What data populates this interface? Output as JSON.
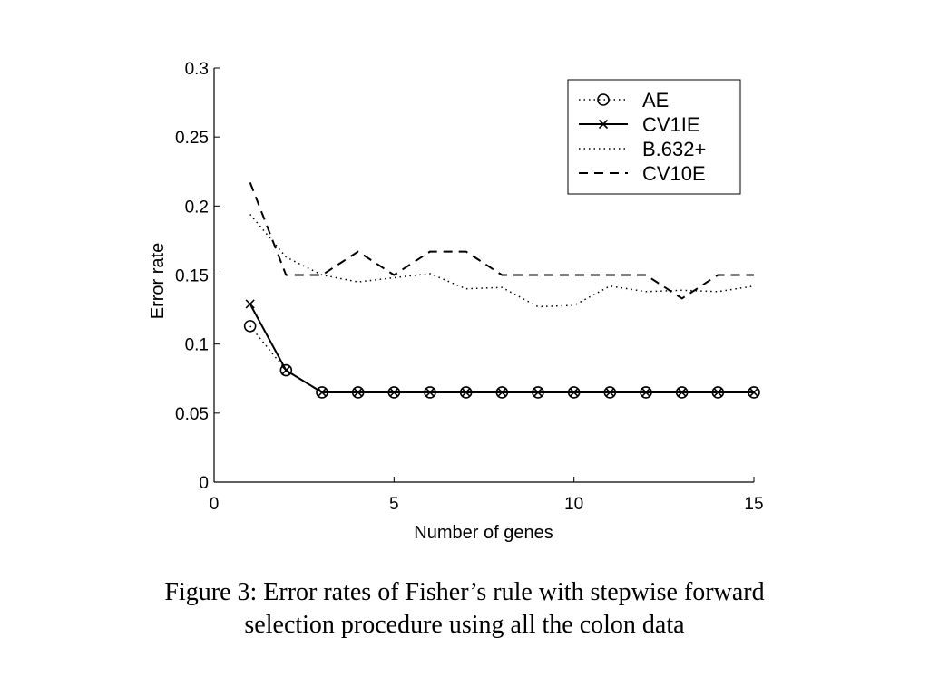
{
  "chart_data": {
    "type": "line",
    "xlabel": "Number of genes",
    "ylabel": "Error rate",
    "xlim": [
      0,
      15
    ],
    "ylim": [
      0,
      0.3
    ],
    "x_ticks": [
      "0",
      "5",
      "10",
      "15"
    ],
    "y_ticks": [
      "0",
      "0.05",
      "0.1",
      "0.15",
      "0.2",
      "0.25",
      "0.3"
    ],
    "grid": false,
    "legend_position": "top-right",
    "series": [
      {
        "name": "AE",
        "style": "dotted-circle",
        "x": [
          1,
          2,
          3,
          4,
          5,
          6,
          7,
          8,
          9,
          10,
          11,
          12,
          13,
          14,
          15
        ],
        "values": [
          0.113,
          0.081,
          0.065,
          0.065,
          0.065,
          0.065,
          0.065,
          0.065,
          0.065,
          0.065,
          0.065,
          0.065,
          0.065,
          0.065,
          0.065
        ]
      },
      {
        "name": "CV1IE",
        "style": "solid-x",
        "x": [
          1,
          2,
          3,
          4,
          5,
          6,
          7,
          8,
          9,
          10,
          11,
          12,
          13,
          14,
          15
        ],
        "values": [
          0.129,
          0.081,
          0.065,
          0.065,
          0.065,
          0.065,
          0.065,
          0.065,
          0.065,
          0.065,
          0.065,
          0.065,
          0.065,
          0.065,
          0.065
        ]
      },
      {
        "name": "B.632+",
        "style": "dotted",
        "x": [
          1,
          2,
          3,
          4,
          5,
          6,
          7,
          8,
          9,
          10,
          11,
          12,
          13,
          14,
          15
        ],
        "values": [
          0.194,
          0.163,
          0.15,
          0.145,
          0.148,
          0.151,
          0.14,
          0.141,
          0.127,
          0.128,
          0.142,
          0.138,
          0.139,
          0.138,
          0.142
        ]
      },
      {
        "name": "CV10E",
        "style": "dashed",
        "x": [
          1,
          2,
          3,
          4,
          5,
          6,
          7,
          8,
          9,
          10,
          11,
          12,
          13,
          14,
          15
        ],
        "values": [
          0.217,
          0.15,
          0.15,
          0.167,
          0.15,
          0.167,
          0.167,
          0.15,
          0.15,
          0.15,
          0.15,
          0.15,
          0.133,
          0.15,
          0.15
        ]
      }
    ]
  },
  "caption": {
    "line1": "Figure 3: Error rates of Fisher’s rule with stepwise forward",
    "line2": "selection procedure using all the colon data"
  }
}
